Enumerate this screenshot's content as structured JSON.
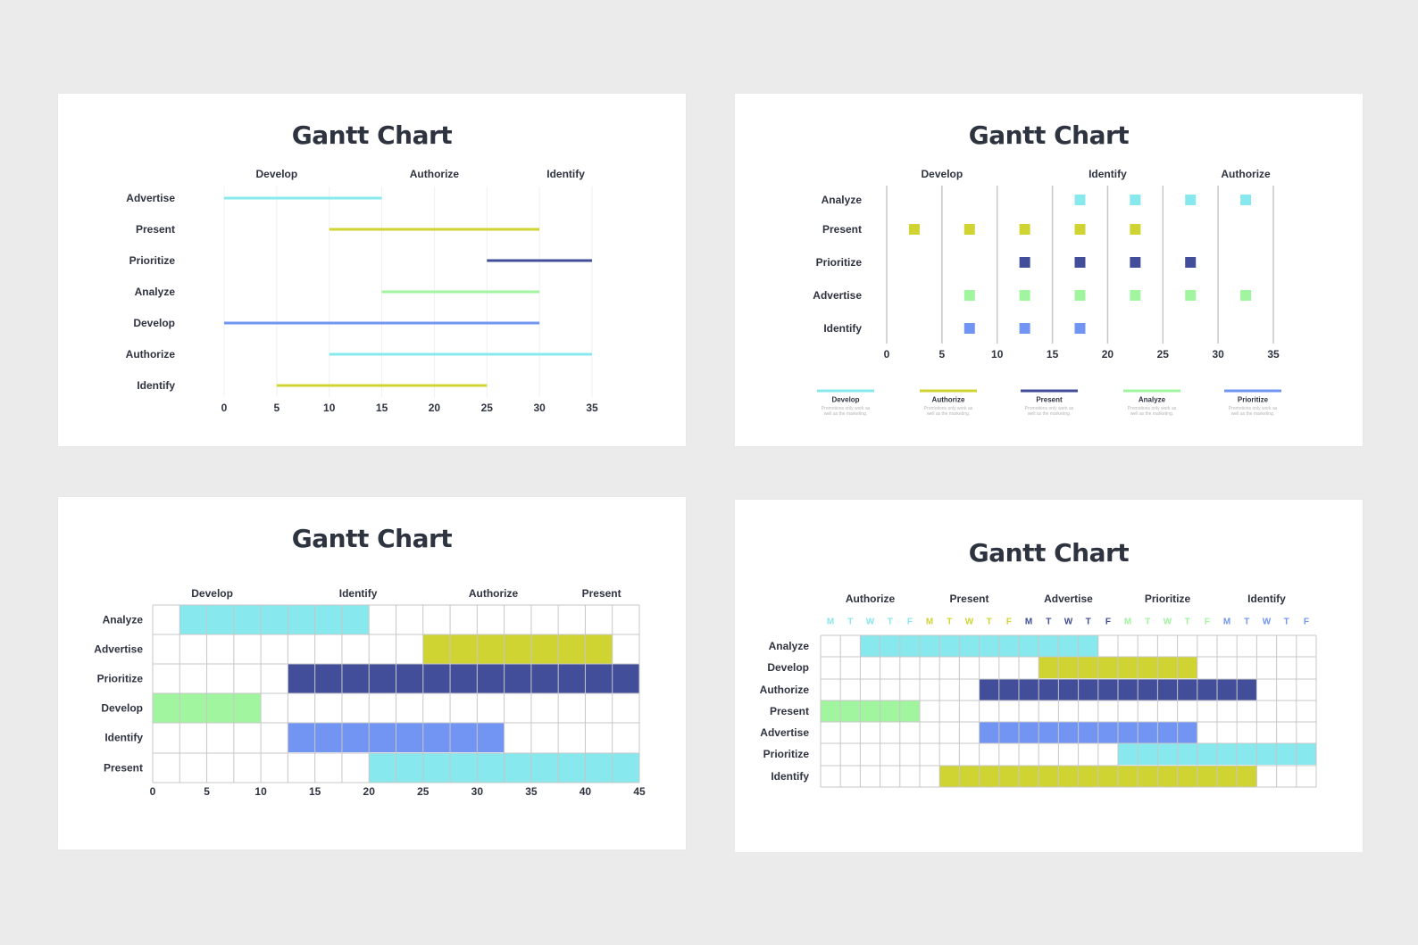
{
  "colors": {
    "cyan": "#87e8ee",
    "olive": "#cfd432",
    "navy": "#434e9a",
    "green": "#a1f59f",
    "blue": "#7295f3",
    "title": "#2e3340",
    "label": "#2e3340",
    "grid": "#c7c7c7"
  },
  "chart_data": [
    {
      "type": "bar",
      "subtype": "gantt-line",
      "title": "Gantt Chart",
      "phase_labels": [
        "Develop",
        "Authorize",
        "Identify"
      ],
      "xticks": [
        0,
        5,
        10,
        15,
        20,
        25,
        30,
        35
      ],
      "xlim": [
        0,
        35
      ],
      "tasks": [
        {
          "name": "Advertise",
          "start": 0,
          "end": 15,
          "color": "#87e8ee"
        },
        {
          "name": "Present",
          "start": 10,
          "end": 30,
          "color": "#cfd432"
        },
        {
          "name": "Prioritize",
          "start": 25,
          "end": 35,
          "color": "#434e9a"
        },
        {
          "name": "Analyze",
          "start": 15,
          "end": 30,
          "color": "#a1f59f"
        },
        {
          "name": "Develop",
          "start": 0,
          "end": 30,
          "color": "#7295f3"
        },
        {
          "name": "Authorize",
          "start": 10,
          "end": 35,
          "color": "#87e8ee"
        },
        {
          "name": "Identify",
          "start": 5,
          "end": 25,
          "color": "#cfd432"
        }
      ]
    },
    {
      "type": "scatter",
      "subtype": "gantt-dot",
      "title": "Gantt Chart",
      "phase_labels": [
        "Develop",
        "Identify",
        "Authorize"
      ],
      "xticks": [
        0,
        5,
        10,
        15,
        20,
        25,
        30,
        35
      ],
      "xlim": [
        0,
        35
      ],
      "tasks": [
        {
          "name": "Analyze",
          "x": [
            17.5,
            22.5,
            27.5,
            32.5
          ],
          "color": "#87e8ee"
        },
        {
          "name": "Present",
          "x": [
            2.5,
            7.5,
            12.5,
            17.5,
            22.5
          ],
          "color": "#cfd432"
        },
        {
          "name": "Prioritize",
          "x": [
            12.5,
            17.5,
            22.5,
            27.5
          ],
          "color": "#434e9a"
        },
        {
          "name": "Advertise",
          "x": [
            7.5,
            12.5,
            17.5,
            22.5,
            27.5,
            32.5
          ],
          "color": "#a1f59f"
        },
        {
          "name": "Identify",
          "x": [
            7.5,
            12.5,
            17.5
          ],
          "color": "#7295f3"
        }
      ],
      "legend": [
        {
          "name": "Develop",
          "note1": "Promotions only work as",
          "note2": "well as the marketing.",
          "color": "#87e8ee"
        },
        {
          "name": "Authorize",
          "note1": "Promotions only work as",
          "note2": "well as the marketing.",
          "color": "#cfd432"
        },
        {
          "name": "Present",
          "note1": "Promotions only work as",
          "note2": "well as the marketing.",
          "color": "#434e9a"
        },
        {
          "name": "Analyze",
          "note1": "Promotions only work as",
          "note2": "well as the marketing.",
          "color": "#a1f59f"
        },
        {
          "name": "Prioritize",
          "note1": "Promotions only work as",
          "note2": "well as the marketing.",
          "color": "#7295f3"
        }
      ]
    },
    {
      "type": "bar",
      "subtype": "gantt-grid",
      "title": "Gantt Chart",
      "phase_labels": [
        "Develop",
        "Identify",
        "Authorize",
        "Present"
      ],
      "xticks": [
        0,
        5,
        10,
        15,
        20,
        25,
        30,
        35,
        40,
        45
      ],
      "xlim": [
        0,
        45
      ],
      "tasks": [
        {
          "name": "Analyze",
          "start": 2.5,
          "end": 20,
          "color": "#87e8ee"
        },
        {
          "name": "Advertise",
          "start": 25,
          "end": 42.5,
          "color": "#cfd432"
        },
        {
          "name": "Prioritize",
          "start": 12.5,
          "end": 45,
          "color": "#434e9a"
        },
        {
          "name": "Develop",
          "start": 0,
          "end": 10,
          "color": "#a1f59f"
        },
        {
          "name": "Identify",
          "start": 12.5,
          "end": 32.5,
          "color": "#7295f3"
        },
        {
          "name": "Present",
          "start": 20,
          "end": 45,
          "color": "#87e8ee"
        }
      ]
    },
    {
      "type": "bar",
      "subtype": "gantt-weekday-grid",
      "title": "Gantt Chart",
      "phase_labels": [
        "Authorize",
        "Present",
        "Advertise",
        "Prioritize",
        "Identify"
      ],
      "day_labels": [
        "M",
        "T",
        "W",
        "T",
        "F",
        "M",
        "T",
        "W",
        "T",
        "F",
        "M",
        "T",
        "W",
        "T",
        "F",
        "M",
        "T",
        "W",
        "T",
        "F",
        "M",
        "T",
        "W",
        "T",
        "F"
      ],
      "week_colors": [
        "#87e8ee",
        "#cfd432",
        "#434e9a",
        "#a1f59f",
        "#7295f3"
      ],
      "tasks": [
        {
          "name": "Analyze",
          "start_day": 2,
          "end_day": 14,
          "color": "#87e8ee"
        },
        {
          "name": "Develop",
          "start_day": 11,
          "end_day": 19,
          "color": "#cfd432"
        },
        {
          "name": "Authorize",
          "start_day": 8,
          "end_day": 22,
          "color": "#434e9a"
        },
        {
          "name": "Present",
          "start_day": 0,
          "end_day": 5,
          "color": "#a1f59f"
        },
        {
          "name": "Advertise",
          "start_day": 8,
          "end_day": 19,
          "color": "#7295f3"
        },
        {
          "name": "Prioritize",
          "start_day": 15,
          "end_day": 25,
          "color": "#87e8ee"
        },
        {
          "name": "Identify",
          "start_day": 6,
          "end_day": 22,
          "color": "#cfd432"
        }
      ]
    }
  ]
}
